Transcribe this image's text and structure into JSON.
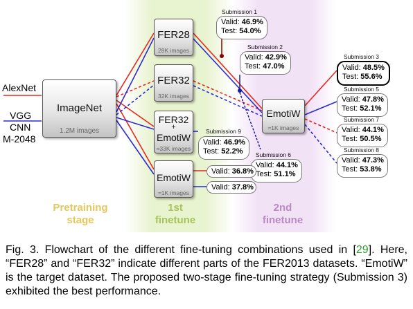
{
  "stages": [
    {
      "id": "pretraining",
      "label_lines": [
        "Pretraining",
        "stage"
      ],
      "color": "#e6c75a",
      "bg": "#ffffff"
    },
    {
      "id": "first-finetune",
      "label_lines": [
        "1st",
        "finetune"
      ],
      "color": "#a7c45a",
      "bg": "#e8f3cf"
    },
    {
      "id": "second-finetune",
      "label_lines": [
        "2nd",
        "finetune"
      ],
      "color": "#b98ac4",
      "bg": "#f0e0f4"
    }
  ],
  "inputs": {
    "alexnet": "AlexNet",
    "vgg_lines": [
      "VGG",
      "CNN",
      "M-2048"
    ]
  },
  "nodes": {
    "imagenet": {
      "title": "ImageNet",
      "sub": "1.2M images"
    },
    "fer28": {
      "title": "FER28",
      "sub": "28K images"
    },
    "fer32": {
      "title": "FER32",
      "sub": "32K images"
    },
    "fer32_emotiw": {
      "title_lines": [
        "FER32",
        "+",
        "EmotiW"
      ],
      "sub": "≈33K images"
    },
    "emotiw_1": {
      "title": "EmotiW",
      "sub": "≈1K images"
    },
    "emotiw_2": {
      "title": "EmotiW",
      "sub": "≈1K images"
    }
  },
  "submissions": [
    {
      "label": "Submission 1",
      "valid_label": "Valid:",
      "valid": "46.9%",
      "test_label": "Test:",
      "test": "54.0%"
    },
    {
      "label": "Submission 2",
      "valid_label": "Valid:",
      "valid": "42.9%",
      "test_label": "Test:",
      "test": "47.0%"
    },
    {
      "label": "Submission 3",
      "valid_label": "Valid:",
      "valid": "48.5%",
      "test_label": "Test:",
      "test": "55.6%",
      "best": true
    },
    {
      "label": "Submission 5",
      "valid_label": "Valid:",
      "valid": "47.8%",
      "test_label": "Test:",
      "test": "52.1%"
    },
    {
      "label": "Submission 7",
      "valid_label": "Valid:",
      "valid": "44.1%",
      "test_label": "Test:",
      "test": "50.5%"
    },
    {
      "label": "Submission 8",
      "valid_label": "Valid:",
      "valid": "47.3%",
      "test_label": "Test:",
      "test": "53.8%"
    },
    {
      "label": "Submission 9",
      "valid_label": "Valid:",
      "valid": "46.9%",
      "test_label": "Test:",
      "test": "52.2%"
    },
    {
      "label": "Submission 6",
      "valid_label": "Valid:",
      "valid": "44.1%",
      "test_label": "Test:",
      "test": "51.1%"
    }
  ],
  "direct_results": [
    {
      "valid_label": "Valid:",
      "valid": "36.8%"
    },
    {
      "valid_label": "Valid:",
      "valid": "37.8%"
    }
  ],
  "edge_colors": {
    "alexnet": "#e8261e",
    "vgg": "#2a2ad6"
  },
  "caption": {
    "part1": "Fig. 3. Flowchart of the different fine-tuning combinations used in [",
    "ref": "29",
    "part2": "]. Here, “FER28” and “FER32” indicate different parts of the FER2013 datasets. “EmotiW” is the target dataset. The proposed two-stage fine-tuning strategy (Submission 3) exhibited the best performance."
  }
}
